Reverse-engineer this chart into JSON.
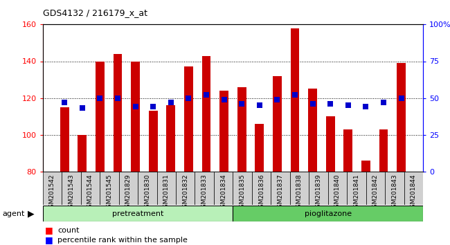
{
  "title": "GDS4132 / 216179_x_at",
  "samples": [
    "GSM201542",
    "GSM201543",
    "GSM201544",
    "GSM201545",
    "GSM201829",
    "GSM201830",
    "GSM201831",
    "GSM201832",
    "GSM201833",
    "GSM201834",
    "GSM201835",
    "GSM201836",
    "GSM201837",
    "GSM201838",
    "GSM201839",
    "GSM201840",
    "GSM201841",
    "GSM201842",
    "GSM201843",
    "GSM201844"
  ],
  "counts": [
    115,
    100,
    140,
    144,
    140,
    113,
    116,
    137,
    143,
    124,
    126,
    106,
    132,
    158,
    125,
    110,
    103,
    86,
    103,
    139
  ],
  "percentile_ranks": [
    47,
    43,
    50,
    50,
    44,
    44,
    47,
    50,
    52,
    49,
    46,
    45,
    49,
    52,
    46,
    46,
    45,
    44,
    47,
    50
  ],
  "ylim_left": [
    80,
    160
  ],
  "ylim_right": [
    0,
    100
  ],
  "yticks_left": [
    80,
    100,
    120,
    140,
    160
  ],
  "yticks_right": [
    0,
    25,
    50,
    75,
    100
  ],
  "ytick_labels_right": [
    "0",
    "25",
    "50",
    "75",
    "100%"
  ],
  "pretreatment_count": 10,
  "bar_color": "#cc0000",
  "dot_color": "#0000cc",
  "pretreatment_color": "#b8f0b8",
  "pioglitazone_color": "#66cc66",
  "bar_width": 0.5,
  "dot_size": 40
}
